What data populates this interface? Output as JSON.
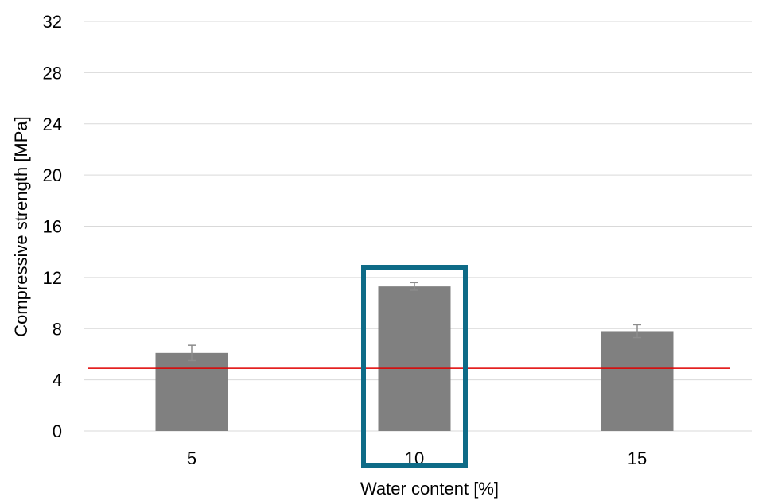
{
  "chart_data": {
    "type": "bar",
    "title": "",
    "xlabel": "Water content [%]",
    "ylabel": "Compressive strength [MPa]",
    "categories": [
      "5",
      "10",
      "15"
    ],
    "values": [
      6.1,
      11.3,
      7.8
    ],
    "errors": [
      0.6,
      0.3,
      0.5
    ],
    "ylim": [
      0,
      32
    ],
    "yticks": [
      "0",
      "4",
      "8",
      "12",
      "16",
      "20",
      "24",
      "28",
      "32"
    ],
    "grid": true,
    "reference_line": {
      "value": 4.9,
      "color": "#e00000"
    },
    "highlight": {
      "category": "10",
      "color": "#0e6b87"
    },
    "bar_color": "#808080",
    "error_color": "#8c8c8c",
    "grid_color": "#d9d9d9"
  }
}
